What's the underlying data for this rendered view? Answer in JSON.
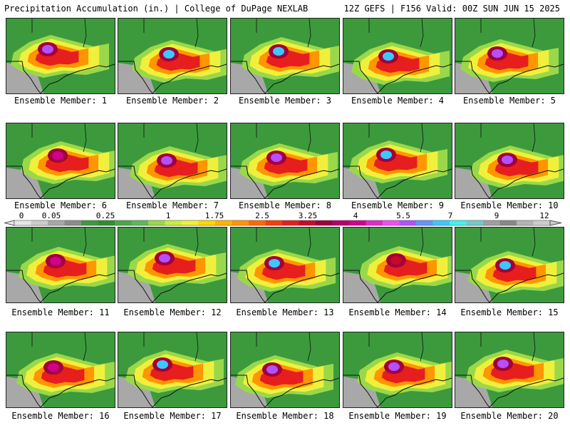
{
  "header": {
    "left": "Precipitation Accumulation (in.) | College of DuPage NEXLAB",
    "right": "12Z GEFS | F156 Valid: 00Z SUN JUN 15 2025"
  },
  "members": [
    {
      "label": "Ensemble Member: 1",
      "peak": 5.5
    },
    {
      "label": "Ensemble Member: 2",
      "peak": 7
    },
    {
      "label": "Ensemble Member: 3",
      "peak": 7
    },
    {
      "label": "Ensemble Member: 4",
      "peak": 7
    },
    {
      "label": "Ensemble Member: 5",
      "peak": 5.5
    },
    {
      "label": "Ensemble Member: 6",
      "peak": 4
    },
    {
      "label": "Ensemble Member: 7",
      "peak": 5.5
    },
    {
      "label": "Ensemble Member: 8",
      "peak": 5.5
    },
    {
      "label": "Ensemble Member: 9",
      "peak": 7
    },
    {
      "label": "Ensemble Member: 10",
      "peak": 5.5
    },
    {
      "label": "Ensemble Member: 11",
      "peak": 4
    },
    {
      "label": "Ensemble Member: 12",
      "peak": 5.5
    },
    {
      "label": "Ensemble Member: 13",
      "peak": 7
    },
    {
      "label": "Ensemble Member: 14",
      "peak": 3.25
    },
    {
      "label": "Ensemble Member: 15",
      "peak": 7
    },
    {
      "label": "Ensemble Member: 16",
      "peak": 4
    },
    {
      "label": "Ensemble Member: 17",
      "peak": 7
    },
    {
      "label": "Ensemble Member: 18",
      "peak": 5.5
    },
    {
      "label": "Ensemble Member: 19",
      "peak": 5.5
    },
    {
      "label": "Ensemble Member: 20",
      "peak": 5.5
    }
  ],
  "colorbar": {
    "ticks": [
      "0",
      "0.05",
      "0.25",
      "1",
      "1.75",
      "2.5",
      "3.25",
      "4",
      "5.5",
      "7",
      "9",
      "12"
    ],
    "colors": [
      "#e6e6e6",
      "#cccccc",
      "#a8a8a8",
      "#8c8c8c",
      "#3c9a3c",
      "#2f8f2f",
      "#4aa84a",
      "#5cb85c",
      "#9ad84a",
      "#c8f03c",
      "#f0f03c",
      "#ffd700",
      "#ffb400",
      "#ff9600",
      "#ff6a00",
      "#ff3c00",
      "#e61e1e",
      "#c80a28",
      "#a0003c",
      "#b4006e",
      "#d2008c",
      "#e628c8",
      "#f050f0",
      "#b450ff",
      "#6496ff",
      "#3cc8ff",
      "#46f0f0",
      "#78c8c8",
      "#a0a0a0",
      "#888888",
      "#b4b4b4",
      "#cccccc"
    ]
  }
}
